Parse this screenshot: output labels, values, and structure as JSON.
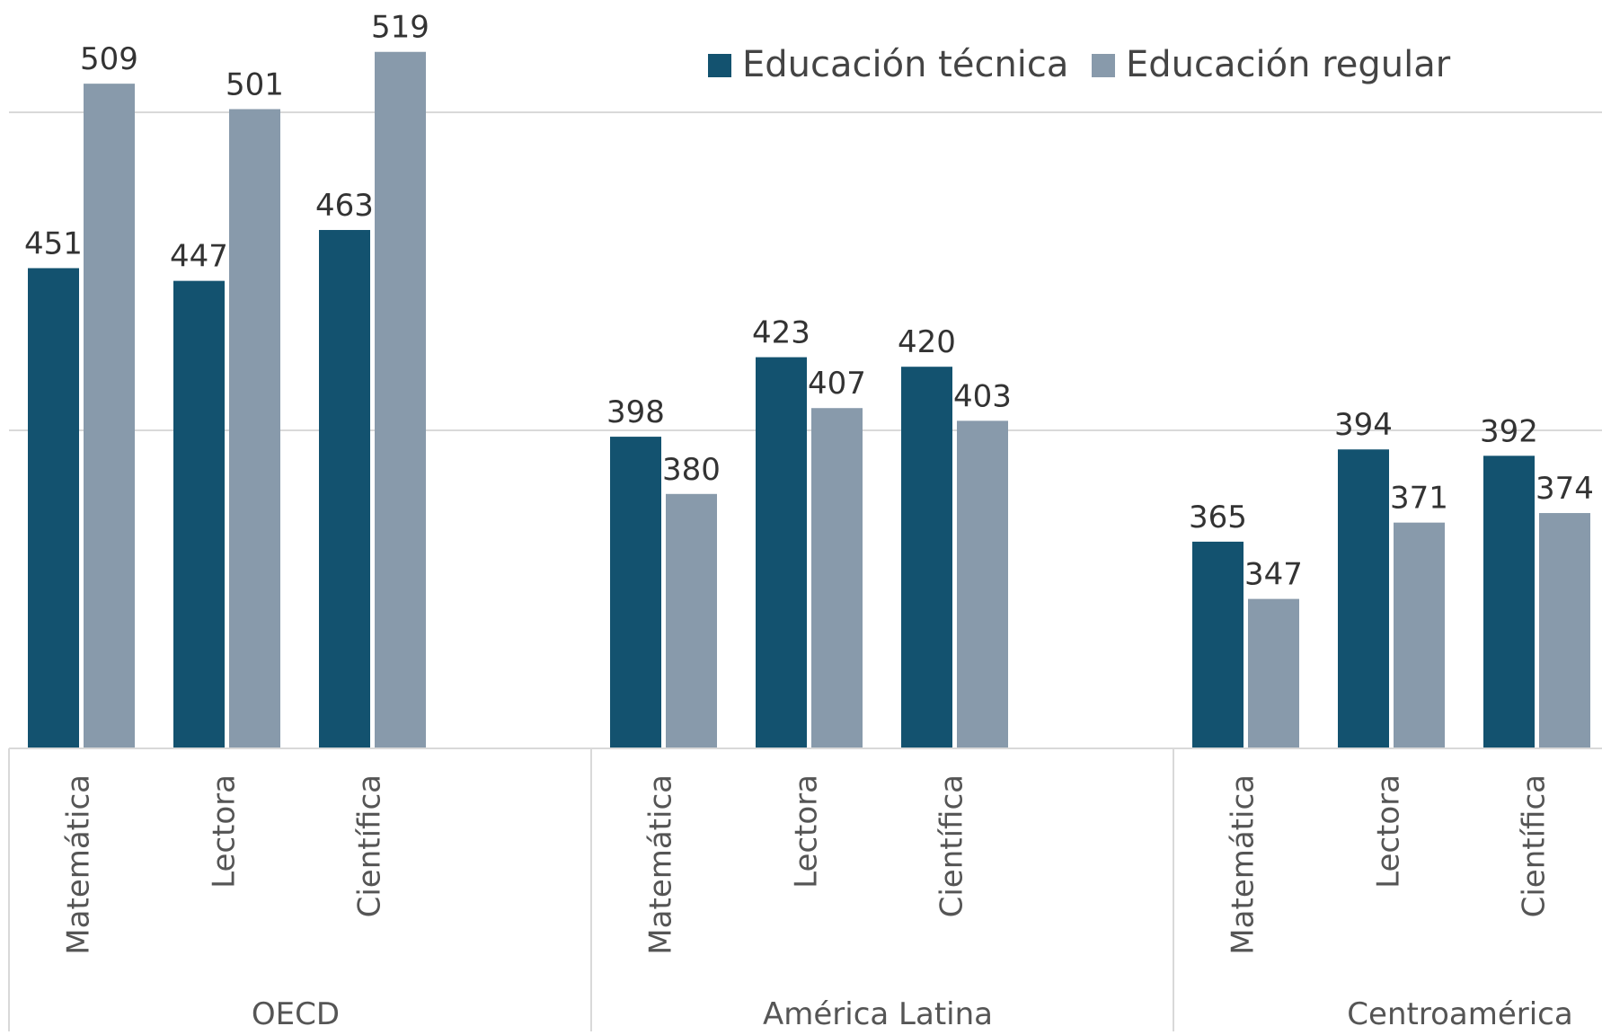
{
  "chart_data": {
    "type": "bar",
    "title": "",
    "xlabel": "",
    "ylabel": "",
    "ylim": [
      300,
      540
    ],
    "grid": true,
    "legend": {
      "position": "top-right",
      "entries": [
        "Educación técnica",
        "Educación regular"
      ]
    },
    "groups": [
      {
        "label": "OECD",
        "categories": [
          "Matemática",
          "Lectora",
          "Científica"
        ]
      },
      {
        "label": "América Latina",
        "categories": [
          "Matemática",
          "Lectora",
          "Científica"
        ]
      },
      {
        "label": "Centroamérica",
        "categories": [
          "Matemática",
          "Lectora",
          "Científica"
        ]
      }
    ],
    "series": [
      {
        "name": "Educación técnica",
        "color": "#13526f",
        "values": [
          451,
          447,
          463,
          398,
          423,
          420,
          365,
          394,
          392
        ]
      },
      {
        "name": "Educación regular",
        "color": "#889aab",
        "values": [
          509,
          501,
          519,
          380,
          407,
          403,
          347,
          371,
          374
        ]
      }
    ]
  }
}
